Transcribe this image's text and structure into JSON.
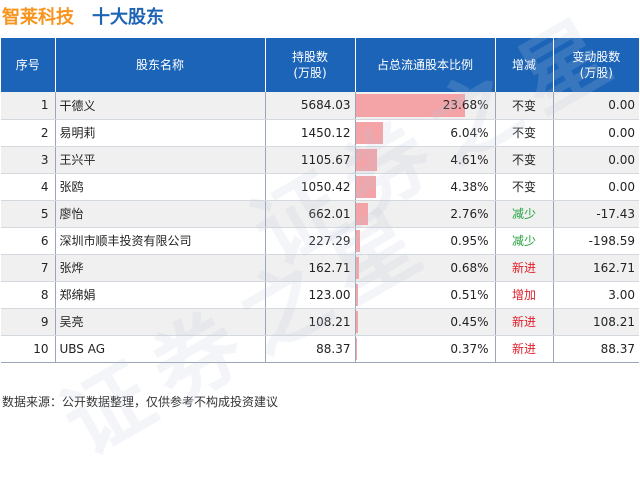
{
  "header": {
    "company": "智莱科技",
    "title": "十大股东"
  },
  "table": {
    "columns": [
      "序号",
      "股东名称",
      "持股数\n(万股)",
      "占总流通股本比例",
      "增减",
      "变动股数\n(万股)"
    ],
    "rows": [
      {
        "rank": "1",
        "name": "干德义",
        "shares": "5684.03",
        "ratio": "23.68%",
        "ratio_value": 23.68,
        "trend": "不变",
        "trend_type": "nochange",
        "change": "0.00"
      },
      {
        "rank": "2",
        "name": "易明莉",
        "shares": "1450.12",
        "ratio": "6.04%",
        "ratio_value": 6.04,
        "trend": "不变",
        "trend_type": "nochange",
        "change": "0.00"
      },
      {
        "rank": "3",
        "name": "王兴平",
        "shares": "1105.67",
        "ratio": "4.61%",
        "ratio_value": 4.61,
        "trend": "不变",
        "trend_type": "nochange",
        "change": "0.00"
      },
      {
        "rank": "4",
        "name": "张鸥",
        "shares": "1050.42",
        "ratio": "4.38%",
        "ratio_value": 4.38,
        "trend": "不变",
        "trend_type": "nochange",
        "change": "0.00"
      },
      {
        "rank": "5",
        "name": "廖怡",
        "shares": "662.01",
        "ratio": "2.76%",
        "ratio_value": 2.76,
        "trend": "减少",
        "trend_type": "down",
        "change": "-17.43"
      },
      {
        "rank": "6",
        "name": "深圳市顺丰投资有限公司",
        "shares": "227.29",
        "ratio": "0.95%",
        "ratio_value": 0.95,
        "trend": "减少",
        "trend_type": "down",
        "change": "-198.59"
      },
      {
        "rank": "7",
        "name": "张烨",
        "shares": "162.71",
        "ratio": "0.68%",
        "ratio_value": 0.68,
        "trend": "新进",
        "trend_type": "new",
        "change": "162.71"
      },
      {
        "rank": "8",
        "name": "郑绵娟",
        "shares": "123.00",
        "ratio": "0.51%",
        "ratio_value": 0.51,
        "trend": "增加",
        "trend_type": "up",
        "change": "3.00"
      },
      {
        "rank": "9",
        "name": "吴亮",
        "shares": "108.21",
        "ratio": "0.45%",
        "ratio_value": 0.45,
        "trend": "新进",
        "trend_type": "new",
        "change": "108.21"
      },
      {
        "rank": "10",
        "name": "UBS AG",
        "shares": "88.37",
        "ratio": "0.37%",
        "ratio_value": 0.37,
        "trend": "新进",
        "trend_type": "new",
        "change": "88.37"
      }
    ],
    "ratio_bar_max": 30
  },
  "footer": {
    "source": "数据来源：公开数据整理，仅供参考不构成投资建议"
  },
  "colors": {
    "company": "#f7941d",
    "title": "#1e64b4",
    "header_bg": "#1c64b8",
    "bar": "#f4a3a6",
    "down": "#22a03c",
    "up": "#e0202c"
  }
}
